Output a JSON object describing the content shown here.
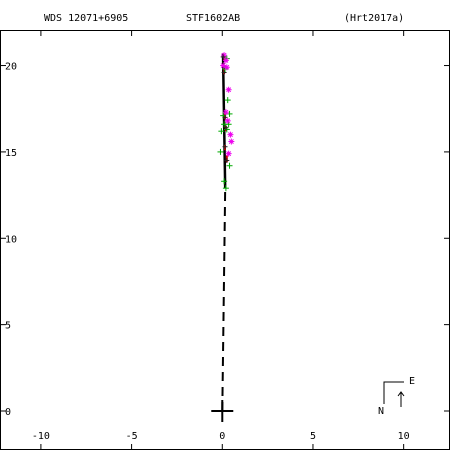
{
  "header": {
    "left": "WDS 12071+6905",
    "center": "STF1602AB",
    "right": "(Hrt2017a)"
  },
  "compass": {
    "east_label": "E",
    "north_label": "N"
  },
  "colors": {
    "axis": "#000000",
    "orbit": "#000000",
    "residual": "#cc0000",
    "green_obs": "#00aa00",
    "magenta_obs": "#ee00ee",
    "dark_obs": "#222222"
  },
  "chart_data": {
    "type": "scatter",
    "title": "STF1602AB",
    "xlabel": "",
    "ylabel": "",
    "xlim": [
      -12.2,
      12.5
    ],
    "ylim": [
      -2.2,
      22.0
    ],
    "x_ticks": [
      -10,
      -5,
      0,
      5,
      10
    ],
    "y_ticks": [
      0,
      5,
      10,
      15,
      20
    ],
    "grid": false,
    "primary": [
      0,
      0
    ],
    "orbit_track": [
      [
        0.16,
        12.9
      ],
      [
        0.12,
        15.5
      ],
      [
        0.08,
        18.0
      ],
      [
        0.04,
        20.7
      ]
    ],
    "node_line": [
      [
        0.0,
        0.0
      ],
      [
        0.16,
        12.9
      ]
    ],
    "green_observations": [
      [
        0.25,
        20.4
      ],
      [
        0.15,
        19.8
      ],
      [
        0.3,
        18.0
      ],
      [
        0.05,
        17.1
      ],
      [
        0.4,
        17.2
      ],
      [
        0.1,
        16.6
      ],
      [
        0.25,
        16.3
      ],
      [
        0.35,
        16.6
      ],
      [
        -0.05,
        16.2
      ],
      [
        -0.1,
        15.0
      ],
      [
        0.4,
        14.2
      ],
      [
        0.1,
        13.3
      ],
      [
        0.2,
        12.9
      ]
    ],
    "magenta_observations": [
      [
        0.1,
        20.6
      ],
      [
        0.2,
        20.3
      ],
      [
        0.05,
        20.0
      ],
      [
        0.25,
        19.9
      ],
      [
        0.35,
        18.6
      ],
      [
        0.2,
        17.3
      ],
      [
        0.3,
        16.8
      ],
      [
        0.45,
        16.0
      ],
      [
        0.5,
        15.6
      ],
      [
        0.35,
        14.9
      ]
    ],
    "dark_observations": [
      [
        0.05,
        20.5
      ],
      [
        0.1,
        19.6
      ],
      [
        0.15,
        17.0
      ],
      [
        0.2,
        16.4
      ],
      [
        0.15,
        15.3
      ],
      [
        0.25,
        14.5
      ]
    ],
    "residual_segments": [
      [
        [
          0.1,
          20.5
        ],
        [
          0.12,
          20.3
        ]
      ],
      [
        [
          0.1,
          19.8
        ],
        [
          0.1,
          19.5
        ]
      ],
      [
        [
          0.15,
          17.2
        ],
        [
          0.15,
          16.9
        ]
      ],
      [
        [
          0.2,
          16.5
        ],
        [
          0.2,
          16.2
        ]
      ],
      [
        [
          0.15,
          15.4
        ],
        [
          0.15,
          15.1
        ]
      ],
      [
        [
          0.25,
          14.8
        ],
        [
          0.25,
          14.4
        ]
      ]
    ]
  }
}
